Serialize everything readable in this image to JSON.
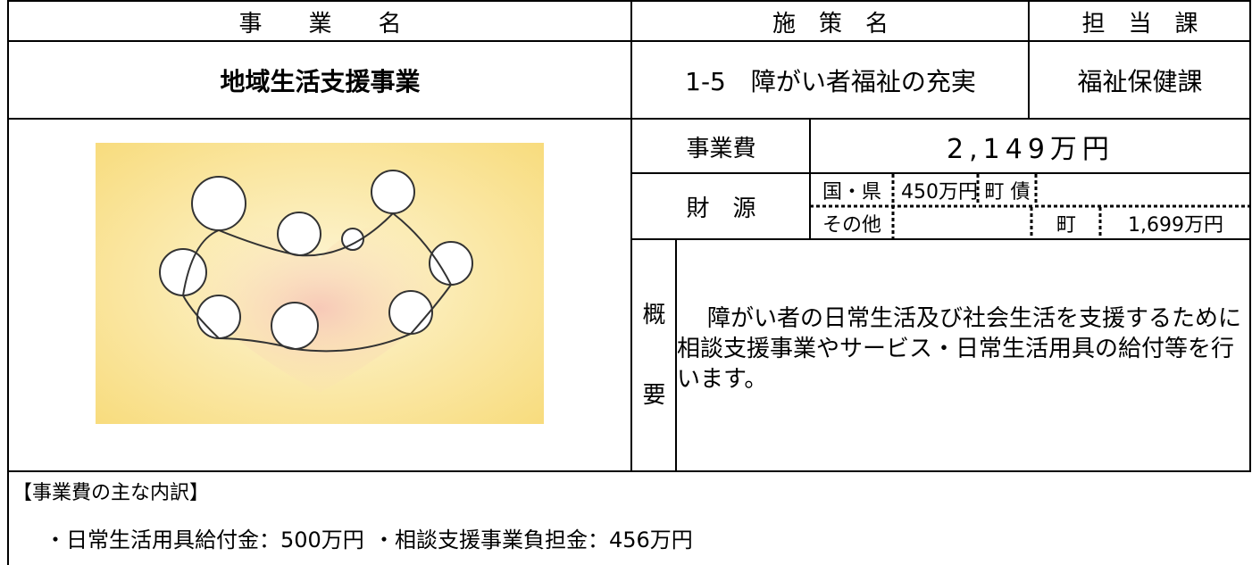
{
  "header": {
    "project_label": "事　　業　　名",
    "policy_label": "施　策　名",
    "department_label": "担　当　課"
  },
  "project": {
    "name": "地域生活支援事業",
    "policy": "1-5　障がい者福祉の充実",
    "department": "福祉保健課"
  },
  "cost": {
    "label": "事業費",
    "value": "2,149万円"
  },
  "funding": {
    "label": "財　源",
    "rows": [
      [
        "国・県",
        "450万円",
        "町 債",
        ""
      ],
      [
        "その他",
        "",
        "町",
        "1,699万円"
      ]
    ]
  },
  "overview": {
    "label": [
      "概",
      "要"
    ],
    "text": "障がい者の日常生活及び社会生活を支援するために相談支援事業やサービス・日常生活用具の給付等を行います。"
  },
  "breakdown": {
    "title": "【事業費の主な内訳】",
    "items": [
      "・日常生活用具給付金：500万円",
      "・相談支援事業負担金：456万円"
    ]
  }
}
